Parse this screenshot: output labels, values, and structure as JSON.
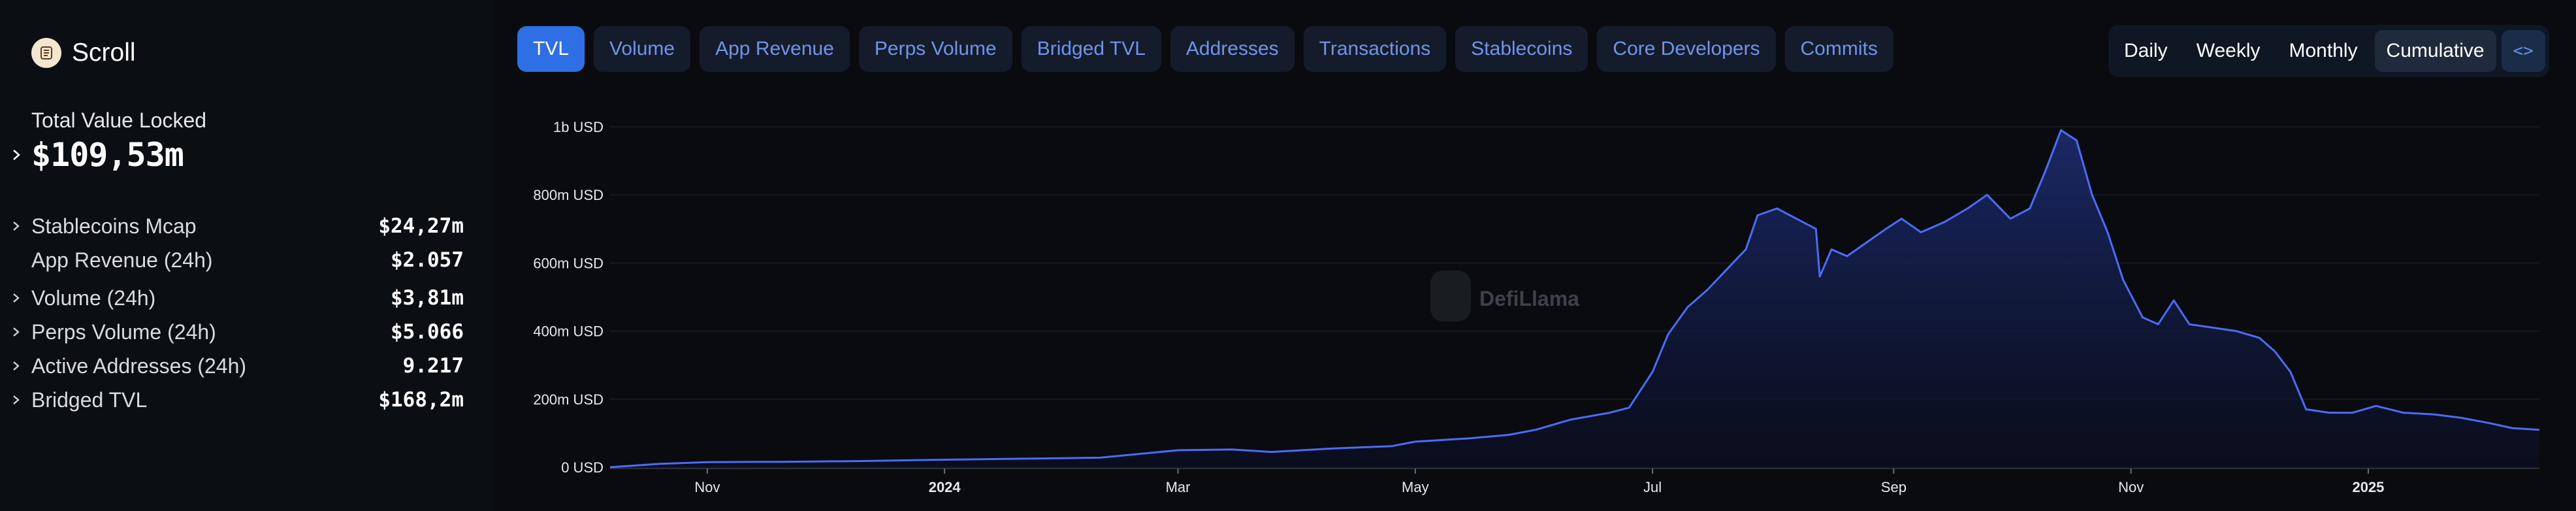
{
  "sidebar": {
    "brand": "Scroll",
    "tvl_label": "Total Value Locked",
    "tvl_value": "$109,53m",
    "metrics": [
      {
        "label": "Stablecoins Mcap",
        "value": "$24,27m",
        "expandable": true
      },
      {
        "label": "App Revenue (24h)",
        "value": "$2.057",
        "expandable": false
      },
      {
        "label": "Volume (24h)",
        "value": "$3,81m",
        "expandable": true
      },
      {
        "label": "Perps Volume (24h)",
        "value": "$5.066",
        "expandable": true
      },
      {
        "label": "Active Addresses (24h)",
        "value": "9.217",
        "expandable": true
      },
      {
        "label": "Bridged TVL",
        "value": "$168,2m",
        "expandable": true
      }
    ]
  },
  "tabs": [
    "TVL",
    "Volume",
    "App Revenue",
    "Perps Volume",
    "Bridged TVL",
    "Addresses",
    "Transactions",
    "Stablecoins",
    "Core Developers",
    "Commits"
  ],
  "active_tab": "TVL",
  "periods": [
    "Daily",
    "Weekly",
    "Monthly",
    "Cumulative"
  ],
  "active_period": "Cumulative",
  "embed_label": "<>",
  "watermark": "DefiLlama",
  "colors": {
    "accent": "#2f6fe6",
    "tab_text": "#6f95e8",
    "line": "#4a6cf7",
    "fill_top": "#1c2a6b"
  },
  "chart_data": {
    "type": "area",
    "title": "",
    "xlabel": "",
    "ylabel": "",
    "ylim": [
      0,
      1000000000
    ],
    "y_ticks": [
      {
        "value": 0,
        "label": "0 USD"
      },
      {
        "value": 200000000,
        "label": "200m USD"
      },
      {
        "value": 400000000,
        "label": "400m USD"
      },
      {
        "value": 600000000,
        "label": "600m USD"
      },
      {
        "value": 800000000,
        "label": "800m USD"
      },
      {
        "value": 1000000000,
        "label": "1b USD"
      }
    ],
    "x_range": [
      "2023-10-07",
      "2025-02-14"
    ],
    "x_ticks": [
      {
        "date": "2023-11-01",
        "label": "Nov",
        "bold": false
      },
      {
        "date": "2024-01-01",
        "label": "2024",
        "bold": true
      },
      {
        "date": "2024-03-01",
        "label": "Mar",
        "bold": false
      },
      {
        "date": "2024-05-01",
        "label": "May",
        "bold": false
      },
      {
        "date": "2024-07-01",
        "label": "Jul",
        "bold": false
      },
      {
        "date": "2024-09-01",
        "label": "Sep",
        "bold": false
      },
      {
        "date": "2024-11-01",
        "label": "Nov",
        "bold": false
      },
      {
        "date": "2025-01-01",
        "label": "2025",
        "bold": true
      }
    ],
    "grid": true,
    "series": [
      {
        "values": [
          [
            "2023-10-07",
            0
          ],
          [
            "2023-10-20",
            10000000
          ],
          [
            "2023-11-01",
            15000000
          ],
          [
            "2023-11-20",
            16000000
          ],
          [
            "2023-12-10",
            18000000
          ],
          [
            "2024-01-01",
            22000000
          ],
          [
            "2024-01-20",
            25000000
          ],
          [
            "2024-02-10",
            28000000
          ],
          [
            "2024-03-01",
            50000000
          ],
          [
            "2024-03-15",
            52000000
          ],
          [
            "2024-03-25",
            45000000
          ],
          [
            "2024-04-10",
            55000000
          ],
          [
            "2024-04-25",
            62000000
          ],
          [
            "2024-05-01",
            75000000
          ],
          [
            "2024-05-15",
            85000000
          ],
          [
            "2024-05-25",
            95000000
          ],
          [
            "2024-06-01",
            110000000
          ],
          [
            "2024-06-10",
            140000000
          ],
          [
            "2024-06-20",
            160000000
          ],
          [
            "2024-06-25",
            175000000
          ],
          [
            "2024-07-01",
            280000000
          ],
          [
            "2024-07-05",
            390000000
          ],
          [
            "2024-07-10",
            470000000
          ],
          [
            "2024-07-15",
            520000000
          ],
          [
            "2024-07-20",
            580000000
          ],
          [
            "2024-07-25",
            640000000
          ],
          [
            "2024-07-28",
            740000000
          ],
          [
            "2024-08-02",
            760000000
          ],
          [
            "2024-08-07",
            730000000
          ],
          [
            "2024-08-12",
            700000000
          ],
          [
            "2024-08-13",
            560000000
          ],
          [
            "2024-08-16",
            640000000
          ],
          [
            "2024-08-20",
            620000000
          ],
          [
            "2024-08-25",
            660000000
          ],
          [
            "2024-08-30",
            700000000
          ],
          [
            "2024-09-03",
            730000000
          ],
          [
            "2024-09-08",
            690000000
          ],
          [
            "2024-09-14",
            720000000
          ],
          [
            "2024-09-20",
            760000000
          ],
          [
            "2024-09-25",
            800000000
          ],
          [
            "2024-10-01",
            730000000
          ],
          [
            "2024-10-06",
            760000000
          ],
          [
            "2024-10-10",
            870000000
          ],
          [
            "2024-10-14",
            990000000
          ],
          [
            "2024-10-18",
            960000000
          ],
          [
            "2024-10-22",
            800000000
          ],
          [
            "2024-10-26",
            690000000
          ],
          [
            "2024-10-30",
            550000000
          ],
          [
            "2024-11-04",
            440000000
          ],
          [
            "2024-11-08",
            420000000
          ],
          [
            "2024-11-12",
            490000000
          ],
          [
            "2024-11-16",
            420000000
          ],
          [
            "2024-11-22",
            410000000
          ],
          [
            "2024-11-28",
            400000000
          ],
          [
            "2024-12-04",
            380000000
          ],
          [
            "2024-12-08",
            340000000
          ],
          [
            "2024-12-12",
            280000000
          ],
          [
            "2024-12-16",
            170000000
          ],
          [
            "2024-12-22",
            160000000
          ],
          [
            "2024-12-28",
            160000000
          ],
          [
            "2025-01-03",
            180000000
          ],
          [
            "2025-01-10",
            160000000
          ],
          [
            "2025-01-18",
            155000000
          ],
          [
            "2025-01-25",
            145000000
          ],
          [
            "2025-02-01",
            130000000
          ],
          [
            "2025-02-07",
            115000000
          ],
          [
            "2025-02-14",
            110000000
          ]
        ]
      }
    ]
  }
}
